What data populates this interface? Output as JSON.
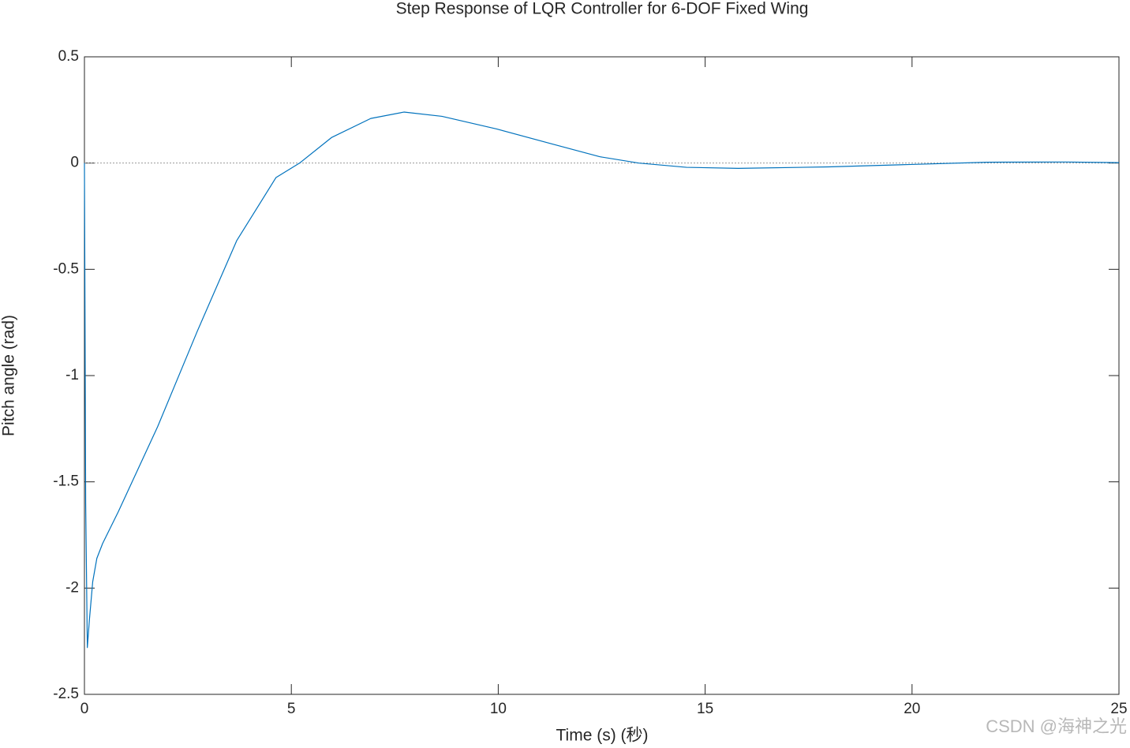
{
  "chart_data": {
    "type": "line",
    "title": "Step Response of LQR Controller for 6-DOF Fixed Wing",
    "x_label": "Time (s) (秒)",
    "y_label": "Pitch angle (rad)",
    "watermark": "CSDN @海神之光",
    "xlim": [
      0,
      25
    ],
    "ylim": [
      -2.5,
      0.5
    ],
    "xticks": [
      0,
      5,
      10,
      15,
      20,
      25
    ],
    "yticks": [
      0.5,
      0,
      -0.5,
      -1,
      -1.5,
      -2,
      -2.5
    ],
    "zero_line": true,
    "series": [
      {
        "name": "Pitch angle",
        "color": "#0072bd",
        "x": [
          0,
          0.01,
          0.03,
          0.07,
          0.12,
          0.2,
          0.3,
          0.44,
          0.82,
          1.77,
          2.73,
          3.68,
          4.63,
          5.2,
          5.97,
          6.92,
          7.72,
          8.64,
          9.97,
          11.3,
          12.45,
          13.4,
          14.55,
          15.8,
          17.98,
          19.9,
          21.8,
          23.7,
          25
        ],
        "values": [
          0,
          -0.5,
          -1.6,
          -2.28,
          -2.15,
          -1.97,
          -1.86,
          -1.79,
          -1.64,
          -1.24,
          -0.79,
          -0.365,
          -0.068,
          0.0,
          0.12,
          0.21,
          0.24,
          0.22,
          0.16,
          0.09,
          0.03,
          0.0,
          -0.02,
          -0.025,
          -0.018,
          -0.007,
          0.004,
          0.005,
          0.002
        ]
      }
    ]
  }
}
